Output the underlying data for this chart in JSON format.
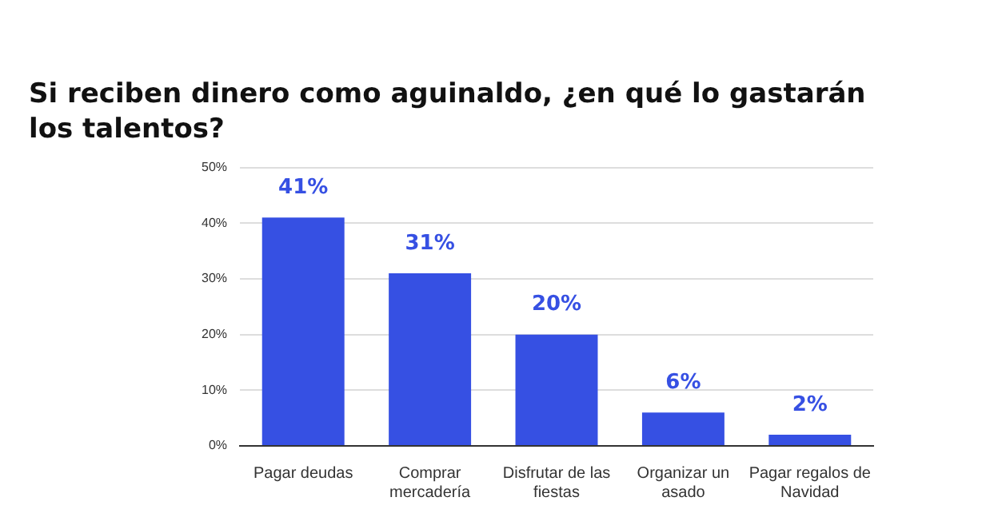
{
  "chart_data": {
    "type": "bar",
    "title": "Si reciben dinero como aguinaldo, ¿en qué lo gastarán los talentos?",
    "categories": [
      "Pagar deudas",
      "Comprar mercadería",
      "Disfrutar de las fiestas",
      "Organizar un asado",
      "Pagar regalos de Navidad"
    ],
    "values": [
      41,
      31,
      20,
      6,
      2
    ],
    "value_labels": [
      "41%",
      "31%",
      "20%",
      "6%",
      "2%"
    ],
    "color": "#3650e3",
    "ylim": [
      0,
      50
    ],
    "yticks": [
      {
        "value": 0,
        "label": "0%"
      },
      {
        "value": 10,
        "label": "10%"
      },
      {
        "value": 20,
        "label": "20%"
      },
      {
        "value": 30,
        "label": "30%"
      },
      {
        "value": 40,
        "label": "40%"
      },
      {
        "value": 50,
        "label": "50%"
      }
    ],
    "grid": "y"
  }
}
